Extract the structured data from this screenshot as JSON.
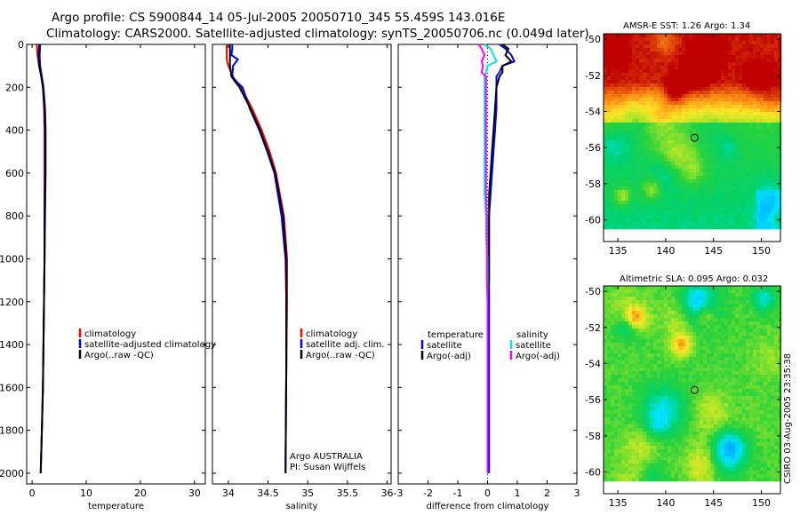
{
  "header": {
    "line1": "Argo profile: CS 5900844_14 05-Jul-2005 20050710_345 55.459S 143.016E",
    "line2": "Climatology: CARS2000. Satellite-adjusted climatology: synTS_20050706.nc (0.049d later)"
  },
  "side_label": "CSIRO 03-Aug-2005 23:35:38",
  "depth_ticks": [
    "0",
    "200",
    "400",
    "600",
    "800",
    "1000",
    "1200",
    "1400",
    "1600",
    "1800",
    "2000"
  ],
  "colors": {
    "climatology": "#ff0000",
    "satellite": "#0000ff",
    "argo": "#000000",
    "cyan": "#00e5ee",
    "magenta": "#ff00ff"
  },
  "chart_data": [
    {
      "type": "line",
      "id": "temperature",
      "xlabel": "temperature",
      "ylabel": "depth",
      "xlim": [
        -1,
        32
      ],
      "ylim": [
        2050,
        0
      ],
      "xticks": [
        "0",
        "10",
        "20",
        "30"
      ],
      "depth": [
        0,
        10,
        50,
        100,
        150,
        200,
        300,
        400,
        600,
        800,
        1000,
        1200,
        1400,
        1600,
        1800,
        2000
      ],
      "series": [
        {
          "name": "climatology",
          "color": "red",
          "values": [
            0.8,
            0.9,
            1.0,
            1.3,
            1.7,
            2.0,
            2.2,
            2.3,
            2.3,
            2.3,
            2.3,
            2.2,
            2.1,
            2.0,
            1.8,
            1.6
          ]
        },
        {
          "name": "satellite-adjusted climatology",
          "color": "blue",
          "values": [
            1.5,
            1.5,
            1.4,
            1.5,
            1.8,
            2.1,
            2.4,
            2.5,
            2.5,
            2.4,
            2.3,
            2.2,
            2.1,
            2.0,
            1.8,
            1.6
          ]
        },
        {
          "name": "Argo(..raw -QC)",
          "color": "black",
          "values": [
            1.3,
            1.3,
            1.2,
            1.3,
            1.7,
            2.0,
            2.3,
            2.4,
            2.4,
            2.3,
            2.3,
            2.2,
            2.1,
            2.0,
            1.8,
            1.6
          ]
        }
      ],
      "legend": [
        "climatology",
        "satellite-adjusted climatology",
        "Argo(..raw -QC)"
      ]
    },
    {
      "type": "line",
      "id": "salinity",
      "xlabel": "salinity",
      "ylabel": "depth",
      "xlim": [
        33.8,
        36.05
      ],
      "ylim": [
        2050,
        0
      ],
      "xticks": [
        "34",
        "34.5",
        "35",
        "35.5",
        "36"
      ],
      "depth": [
        0,
        20,
        50,
        70,
        100,
        150,
        180,
        200,
        300,
        400,
        500,
        600,
        800,
        1000,
        1200,
        1500,
        2000
      ],
      "series": [
        {
          "name": "climatology",
          "color": "red",
          "values": [
            33.98,
            33.98,
            33.98,
            33.98,
            34.0,
            34.06,
            34.1,
            34.16,
            34.3,
            34.42,
            34.52,
            34.6,
            34.7,
            34.74,
            34.74,
            34.73,
            34.72
          ]
        },
        {
          "name": "satellite adj. clim.",
          "color": "blue",
          "values": [
            34.05,
            34.05,
            34.04,
            34.12,
            34.06,
            34.05,
            34.12,
            34.18,
            34.27,
            34.39,
            34.49,
            34.58,
            34.67,
            34.72,
            34.73,
            34.73,
            34.72
          ]
        },
        {
          "name": "Argo(..raw -QC)",
          "color": "black",
          "values": [
            34.02,
            34.02,
            34.02,
            34.02,
            34.02,
            34.04,
            34.1,
            34.14,
            34.28,
            34.4,
            34.5,
            34.59,
            34.69,
            34.73,
            34.73,
            34.73,
            34.72
          ]
        }
      ],
      "legend": [
        "climatology",
        "satellite adj. clim.",
        "Argo(..raw -QC)"
      ],
      "annotations": [
        "Argo AUSTRALIA",
        "PI: Susan Wijffels"
      ]
    },
    {
      "type": "line",
      "id": "difference",
      "xlabel": "difference from climatology",
      "ylabel": "depth",
      "xlim": [
        -3,
        3
      ],
      "ylim": [
        2050,
        0
      ],
      "xticks": [
        "-3",
        "-2",
        "-1",
        "0",
        "1",
        "2",
        "3"
      ],
      "depth": [
        0,
        20,
        50,
        80,
        100,
        130,
        150,
        200,
        300,
        400,
        500,
        600,
        700,
        800,
        900,
        1000,
        1100,
        1200,
        1500,
        1800,
        2000
      ],
      "series": [
        {
          "name": "temperature satellite",
          "color": "blue",
          "values": [
            0.4,
            0.6,
            0.8,
            0.9,
            0.5,
            0.4,
            0.3,
            0.3,
            0.3,
            0.25,
            0.2,
            0.15,
            0.1,
            0.05,
            0.05,
            0.05,
            0.05,
            0.05,
            0.05,
            0.05,
            0.05
          ]
        },
        {
          "name": "temperature Argo(-adj)",
          "color": "black",
          "values": [
            0.5,
            0.7,
            0.6,
            0.8,
            0.5,
            0.5,
            0.4,
            0.3,
            0.25,
            0.2,
            0.15,
            0.1,
            0.05,
            0.05,
            0.05,
            0.05,
            0.05,
            0.0,
            0.0,
            0.0,
            0.0
          ]
        },
        {
          "name": "salinity satellite",
          "color": "cyan",
          "values": [
            -0.1,
            0.1,
            0.2,
            0.3,
            0.0,
            -0.05,
            -0.1,
            -0.1,
            -0.1,
            -0.1,
            -0.1,
            -0.1,
            -0.1,
            -0.05,
            -0.05,
            0.0,
            0.0,
            0.0,
            0.0,
            0.0,
            0.0
          ]
        },
        {
          "name": "salinity Argo(-adj)",
          "color": "magenta",
          "values": [
            -0.3,
            -0.2,
            -0.1,
            -0.2,
            -0.15,
            -0.2,
            -0.05,
            -0.05,
            -0.05,
            -0.05,
            -0.05,
            -0.05,
            -0.05,
            -0.02,
            -0.02,
            -0.02,
            -0.02,
            0.0,
            0.0,
            0.0,
            0.0
          ]
        }
      ],
      "legend_temperature_header": "temperature",
      "legend_temperature": [
        "satellite",
        "Argo(-adj)"
      ],
      "legend_salinity_header": "salinity",
      "legend_salinity": [
        "satellite",
        "Argo(-adj)"
      ]
    },
    {
      "type": "heatmap",
      "id": "sst_map",
      "title": "AMSR-E SST: 1.26 Argo: 1.34",
      "xticks": [
        "135",
        "140",
        "145",
        "150"
      ],
      "yticks": [
        "-50",
        "-52",
        "-54",
        "-56",
        "-58",
        "-60"
      ],
      "xlim": [
        133.5,
        152
      ],
      "ylim": [
        -61.2,
        -49.7
      ],
      "marker": {
        "lon": 143.016,
        "lat": -55.459
      }
    },
    {
      "type": "heatmap",
      "id": "sla_map",
      "title": "Altimetric SLA: 0.095 Argo: 0.032",
      "xticks": [
        "135",
        "140",
        "145",
        "150"
      ],
      "yticks": [
        "-50",
        "-52",
        "-54",
        "-56",
        "-58",
        "-60"
      ],
      "xlim": [
        133.5,
        152
      ],
      "ylim": [
        -61.2,
        -49.7
      ],
      "marker": {
        "lon": 143.016,
        "lat": -55.459
      }
    }
  ]
}
